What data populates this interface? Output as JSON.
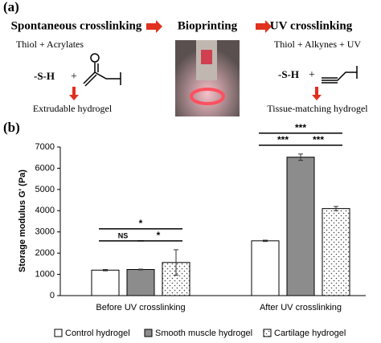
{
  "panel_a": {
    "label": "(a)",
    "steps": [
      {
        "title": "Spontaneous crosslinking",
        "reagents": "Thiol + Acrylates",
        "thiol": "-S-H",
        "plus": "+",
        "result": "Extrudable hydrogel"
      },
      {
        "title": "Bioprinting"
      },
      {
        "title": "UV crosslinking",
        "reagents": "Thiol + Alkynes + UV",
        "thiol": "-S-H",
        "plus": "+",
        "result": "Tissue-matching hydrogel"
      }
    ]
  },
  "chart_data": {
    "type": "bar",
    "label": "(b)",
    "ylabel": "Storage modulus G' (Pa)",
    "categories": [
      "Before UV crosslinking",
      "After UV crosslinking"
    ],
    "series": [
      {
        "name": "Control hydrogel",
        "color": "#ffffff",
        "values": [
          1200,
          2580
        ],
        "errors": [
          30,
          30
        ]
      },
      {
        "name": "Smooth muscle hydrogel",
        "color": "#8c8c8c",
        "values": [
          1230,
          6520
        ],
        "errors": [
          20,
          150
        ]
      },
      {
        "name": "Cartilage hydrogel",
        "color": "#ffffff",
        "pattern": "dots",
        "values": [
          1560,
          4100
        ],
        "errors": [
          600,
          100
        ]
      }
    ],
    "ylim": [
      0,
      7000
    ],
    "yticks": [
      0,
      1000,
      2000,
      3000,
      4000,
      5000,
      6000,
      7000
    ],
    "annotations": [
      {
        "text": "NS",
        "category": 0,
        "from": 0,
        "to": 1
      },
      {
        "text": "*",
        "category": 0,
        "from": 1,
        "to": 2
      },
      {
        "text": "*",
        "category": 0,
        "from": 0,
        "to": 2
      },
      {
        "text": "***",
        "category": 1,
        "from": 0,
        "to": 1
      },
      {
        "text": "***",
        "category": 1,
        "from": 1,
        "to": 2
      },
      {
        "text": "***",
        "category": 1,
        "from": 0,
        "to": 2
      }
    ]
  }
}
